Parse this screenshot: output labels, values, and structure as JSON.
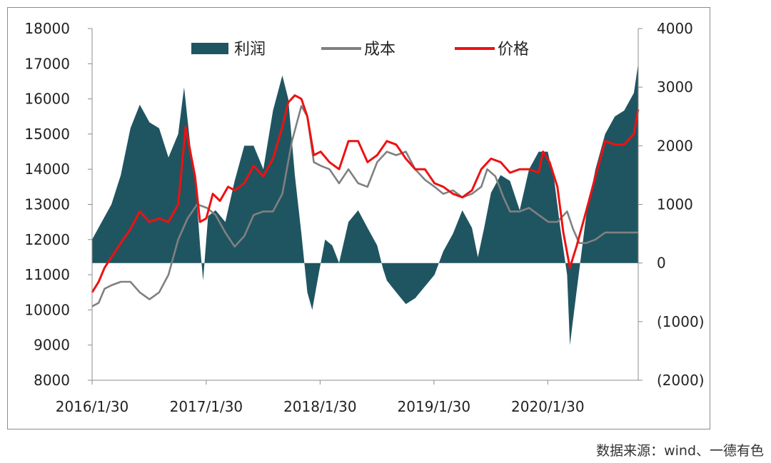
{
  "chart_data": {
    "type": "line",
    "title": "",
    "xlabel": "",
    "ylabel": "",
    "x_range": [
      "2016-01-30",
      "2020-11-15"
    ],
    "x_tick_labels": [
      "2016/1/30",
      "2017/1/30",
      "2018/1/30",
      "2019/1/30",
      "2020/1/30"
    ],
    "ylim_left": [
      8000,
      18000
    ],
    "y_ticks_left": [
      "18000",
      "17000",
      "16000",
      "15000",
      "14000",
      "13000",
      "12000",
      "11000",
      "10000",
      "9000",
      "8000"
    ],
    "ylim_right": [
      -2000,
      4000
    ],
    "y_ticks_right": [
      "4000",
      "3000",
      "2000",
      "1000",
      "0",
      "(1000)",
      "(2000)"
    ],
    "negative_tick_color": "#c0392b",
    "legend_position": "top",
    "grid": false,
    "series": [
      {
        "name": "利润",
        "type": "area",
        "axis": "right",
        "color": "#1f5561",
        "points": [
          [
            "2016-01-30",
            400
          ],
          [
            "2016-03-01",
            700
          ],
          [
            "2016-04-01",
            1000
          ],
          [
            "2016-05-01",
            1500
          ],
          [
            "2016-06-01",
            2300
          ],
          [
            "2016-07-01",
            2700
          ],
          [
            "2016-08-01",
            2400
          ],
          [
            "2016-09-01",
            2300
          ],
          [
            "2016-10-01",
            1800
          ],
          [
            "2016-11-01",
            2200
          ],
          [
            "2016-11-20",
            3000
          ],
          [
            "2016-12-10",
            2000
          ],
          [
            "2016-12-25",
            1500
          ],
          [
            "2017-01-10",
            300
          ],
          [
            "2017-01-20",
            -300
          ],
          [
            "2017-02-05",
            800
          ],
          [
            "2017-03-01",
            900
          ],
          [
            "2017-04-01",
            700
          ],
          [
            "2017-05-01",
            1400
          ],
          [
            "2017-06-01",
            2000
          ],
          [
            "2017-07-01",
            2000
          ],
          [
            "2017-08-01",
            1600
          ],
          [
            "2017-09-01",
            2600
          ],
          [
            "2017-10-01",
            3200
          ],
          [
            "2017-10-20",
            2800
          ],
          [
            "2017-11-10",
            1500
          ],
          [
            "2017-12-01",
            500
          ],
          [
            "2017-12-20",
            -500
          ],
          [
            "2018-01-05",
            -800
          ],
          [
            "2018-01-25",
            -200
          ],
          [
            "2018-02-15",
            400
          ],
          [
            "2018-03-10",
            300
          ],
          [
            "2018-04-01",
            0
          ],
          [
            "2018-05-01",
            700
          ],
          [
            "2018-06-01",
            900
          ],
          [
            "2018-07-01",
            600
          ],
          [
            "2018-08-01",
            300
          ],
          [
            "2018-08-20",
            -100
          ],
          [
            "2018-09-01",
            -300
          ],
          [
            "2018-10-01",
            -500
          ],
          [
            "2018-11-01",
            -700
          ],
          [
            "2018-12-01",
            -600
          ],
          [
            "2019-01-01",
            -400
          ],
          [
            "2019-02-01",
            -200
          ],
          [
            "2019-03-01",
            200
          ],
          [
            "2019-04-01",
            500
          ],
          [
            "2019-05-01",
            900
          ],
          [
            "2019-06-01",
            600
          ],
          [
            "2019-06-20",
            100
          ],
          [
            "2019-07-10",
            600
          ],
          [
            "2019-08-01",
            1200
          ],
          [
            "2019-09-01",
            1500
          ],
          [
            "2019-10-01",
            1400
          ],
          [
            "2019-11-01",
            900
          ],
          [
            "2019-12-01",
            1600
          ],
          [
            "2020-01-01",
            1900
          ],
          [
            "2020-01-30",
            1900
          ],
          [
            "2020-02-20",
            1400
          ],
          [
            "2020-03-10",
            600
          ],
          [
            "2020-04-01",
            -200
          ],
          [
            "2020-04-10",
            -1400
          ],
          [
            "2020-05-01",
            -500
          ],
          [
            "2020-06-01",
            800
          ],
          [
            "2020-07-01",
            1600
          ],
          [
            "2020-08-01",
            2200
          ],
          [
            "2020-09-01",
            2500
          ],
          [
            "2020-10-01",
            2600
          ],
          [
            "2020-11-01",
            2900
          ],
          [
            "2020-11-15",
            3400
          ]
        ]
      },
      {
        "name": "成本",
        "type": "line",
        "axis": "left",
        "color": "#808080",
        "points": [
          [
            "2016-01-30",
            10100
          ],
          [
            "2016-02-20",
            10200
          ],
          [
            "2016-03-10",
            10600
          ],
          [
            "2016-04-01",
            10700
          ],
          [
            "2016-05-01",
            10800
          ],
          [
            "2016-06-01",
            10800
          ],
          [
            "2016-07-01",
            10500
          ],
          [
            "2016-08-01",
            10300
          ],
          [
            "2016-09-01",
            10500
          ],
          [
            "2016-10-01",
            11000
          ],
          [
            "2016-11-01",
            12000
          ],
          [
            "2016-12-01",
            12600
          ],
          [
            "2017-01-01",
            13000
          ],
          [
            "2017-02-01",
            12900
          ],
          [
            "2017-03-01",
            12700
          ],
          [
            "2017-04-01",
            12200
          ],
          [
            "2017-05-01",
            11800
          ],
          [
            "2017-06-01",
            12100
          ],
          [
            "2017-07-01",
            12700
          ],
          [
            "2017-08-01",
            12800
          ],
          [
            "2017-09-01",
            12800
          ],
          [
            "2017-10-01",
            13300
          ],
          [
            "2017-11-01",
            14800
          ],
          [
            "2017-12-01",
            15800
          ],
          [
            "2017-12-20",
            15500
          ],
          [
            "2018-01-10",
            14200
          ],
          [
            "2018-02-01",
            14100
          ],
          [
            "2018-03-01",
            14000
          ],
          [
            "2018-04-01",
            13600
          ],
          [
            "2018-05-01",
            14000
          ],
          [
            "2018-06-01",
            13600
          ],
          [
            "2018-07-01",
            13500
          ],
          [
            "2018-08-01",
            14200
          ],
          [
            "2018-09-01",
            14500
          ],
          [
            "2018-10-01",
            14400
          ],
          [
            "2018-11-01",
            14500
          ],
          [
            "2018-12-01",
            14000
          ],
          [
            "2019-01-01",
            13700
          ],
          [
            "2019-02-01",
            13500
          ],
          [
            "2019-03-01",
            13300
          ],
          [
            "2019-04-01",
            13400
          ],
          [
            "2019-05-01",
            13200
          ],
          [
            "2019-06-01",
            13300
          ],
          [
            "2019-07-01",
            13500
          ],
          [
            "2019-07-20",
            14000
          ],
          [
            "2019-08-15",
            13800
          ],
          [
            "2019-09-10",
            13200
          ],
          [
            "2019-10-01",
            12800
          ],
          [
            "2019-11-01",
            12800
          ],
          [
            "2019-12-01",
            12900
          ],
          [
            "2020-01-01",
            12700
          ],
          [
            "2020-02-01",
            12500
          ],
          [
            "2020-03-01",
            12500
          ],
          [
            "2020-04-01",
            12800
          ],
          [
            "2020-04-20",
            12300
          ],
          [
            "2020-05-10",
            11900
          ],
          [
            "2020-06-01",
            11900
          ],
          [
            "2020-07-01",
            12000
          ],
          [
            "2020-08-01",
            12200
          ],
          [
            "2020-09-01",
            12200
          ],
          [
            "2020-10-01",
            12200
          ],
          [
            "2020-11-15",
            12200
          ]
        ]
      },
      {
        "name": "价格",
        "type": "line",
        "axis": "left",
        "color": "#ee1111",
        "points": [
          [
            "2016-01-30",
            10500
          ],
          [
            "2016-02-20",
            10800
          ],
          [
            "2016-03-10",
            11200
          ],
          [
            "2016-04-01",
            11500
          ],
          [
            "2016-05-01",
            11900
          ],
          [
            "2016-06-01",
            12300
          ],
          [
            "2016-07-01",
            12800
          ],
          [
            "2016-08-01",
            12500
          ],
          [
            "2016-09-01",
            12600
          ],
          [
            "2016-10-01",
            12500
          ],
          [
            "2016-11-01",
            13000
          ],
          [
            "2016-11-25",
            15200
          ],
          [
            "2016-12-10",
            14500
          ],
          [
            "2016-12-25",
            13800
          ],
          [
            "2017-01-10",
            12500
          ],
          [
            "2017-01-30",
            12600
          ],
          [
            "2017-02-20",
            13300
          ],
          [
            "2017-03-15",
            13100
          ],
          [
            "2017-04-10",
            13500
          ],
          [
            "2017-05-01",
            13400
          ],
          [
            "2017-06-01",
            13600
          ],
          [
            "2017-07-01",
            14100
          ],
          [
            "2017-08-01",
            13800
          ],
          [
            "2017-09-01",
            14300
          ],
          [
            "2017-10-01",
            15200
          ],
          [
            "2017-10-20",
            15900
          ],
          [
            "2017-11-10",
            16100
          ],
          [
            "2017-12-01",
            16000
          ],
          [
            "2017-12-20",
            15500
          ],
          [
            "2018-01-10",
            14400
          ],
          [
            "2018-02-01",
            14500
          ],
          [
            "2018-03-01",
            14200
          ],
          [
            "2018-04-01",
            14000
          ],
          [
            "2018-05-01",
            14800
          ],
          [
            "2018-06-01",
            14800
          ],
          [
            "2018-07-01",
            14200
          ],
          [
            "2018-08-01",
            14400
          ],
          [
            "2018-09-01",
            14800
          ],
          [
            "2018-10-01",
            14700
          ],
          [
            "2018-11-01",
            14300
          ],
          [
            "2018-12-01",
            14000
          ],
          [
            "2019-01-01",
            14000
          ],
          [
            "2019-02-01",
            13600
          ],
          [
            "2019-03-01",
            13500
          ],
          [
            "2019-04-01",
            13300
          ],
          [
            "2019-05-01",
            13200
          ],
          [
            "2019-06-01",
            13400
          ],
          [
            "2019-07-01",
            14000
          ],
          [
            "2019-08-01",
            14300
          ],
          [
            "2019-09-01",
            14200
          ],
          [
            "2019-10-01",
            13900
          ],
          [
            "2019-11-01",
            14000
          ],
          [
            "2019-12-01",
            14000
          ],
          [
            "2020-01-01",
            13900
          ],
          [
            "2020-01-15",
            14500
          ],
          [
            "2020-02-05",
            14200
          ],
          [
            "2020-03-01",
            13500
          ],
          [
            "2020-03-20",
            12200
          ],
          [
            "2020-04-10",
            11200
          ],
          [
            "2020-05-01",
            11800
          ],
          [
            "2020-06-01",
            12800
          ],
          [
            "2020-07-01",
            13800
          ],
          [
            "2020-08-01",
            14800
          ],
          [
            "2020-09-01",
            14700
          ],
          [
            "2020-10-01",
            14700
          ],
          [
            "2020-11-01",
            15000
          ],
          [
            "2020-11-15",
            15700
          ]
        ]
      }
    ]
  },
  "source_note": "数据来源：wind、一德有色"
}
